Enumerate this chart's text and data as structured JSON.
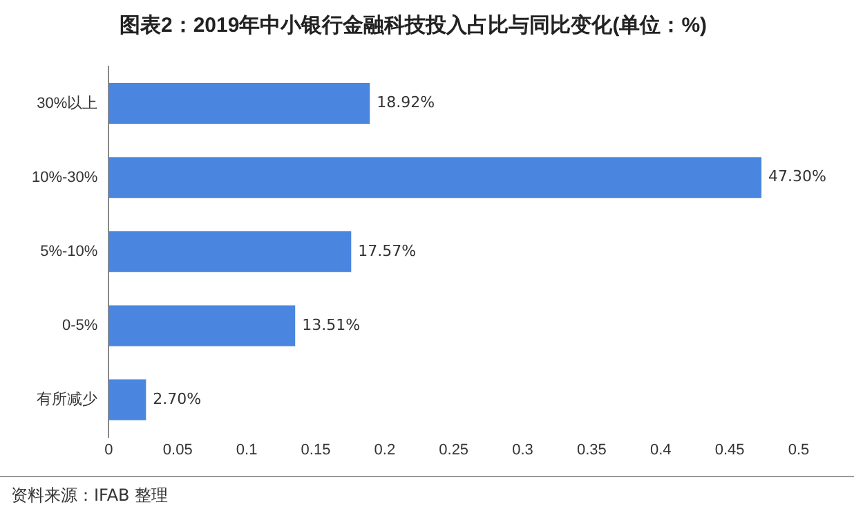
{
  "chart_data": {
    "type": "bar",
    "orientation": "horizontal",
    "title": "图表2：2019年中小银行金融科技投入占比与同比变化(单位：%)",
    "categories": [
      "30%以上",
      "10%-30%",
      "5%-10%",
      "0-5%",
      "有所减少"
    ],
    "values": [
      0.1892,
      0.473,
      0.1757,
      0.1351,
      0.027
    ],
    "value_labels": [
      "18.92%",
      "47.30%",
      "17.57%",
      "13.51%",
      "2.70%"
    ],
    "color": "#4a86e0",
    "xlim": [
      0,
      0.5
    ],
    "xticks": [
      0,
      0.05,
      0.1,
      0.15,
      0.2,
      0.25,
      0.3,
      0.35,
      0.4,
      0.45,
      0.5
    ],
    "grid": false,
    "legend": false,
    "annotations": [
      "资料来源：IFAB 整理"
    ]
  }
}
